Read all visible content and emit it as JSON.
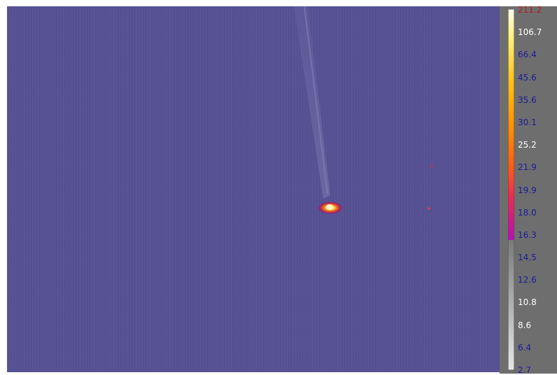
{
  "palette": {
    "background": "#555193",
    "hotspot_core": "#fff4b0",
    "hotspot_edge": "#c2186a",
    "panel": "#6e6e6e"
  },
  "scale": {
    "labels": [
      {
        "text": "211.2",
        "color": "#b21a1a"
      },
      {
        "text": "106.7",
        "color": "#ffffff"
      },
      {
        "text": "66.4",
        "color": "#1b1b99"
      },
      {
        "text": "45.6",
        "color": "#1b1b99"
      },
      {
        "text": "35.6",
        "color": "#1b1b99"
      },
      {
        "text": "30.1",
        "color": "#1b1b99"
      },
      {
        "text": "25.2",
        "color": "#ffffff"
      },
      {
        "text": "21.9",
        "color": "#1b1b99"
      },
      {
        "text": "19.9",
        "color": "#1b1b99"
      },
      {
        "text": "18.0",
        "color": "#1b1b99"
      },
      {
        "text": "16.3",
        "color": "#1b1b99"
      },
      {
        "text": "14.5",
        "color": "#1b1b99"
      },
      {
        "text": "12.6",
        "color": "#1b1b99"
      },
      {
        "text": "10.8",
        "color": "#ffffff"
      },
      {
        "text": "8.6",
        "color": "#ffffff"
      },
      {
        "text": "6.4",
        "color": "#1b1b99"
      },
      {
        "text": "2.7",
        "color": "#1b1b99"
      }
    ]
  }
}
